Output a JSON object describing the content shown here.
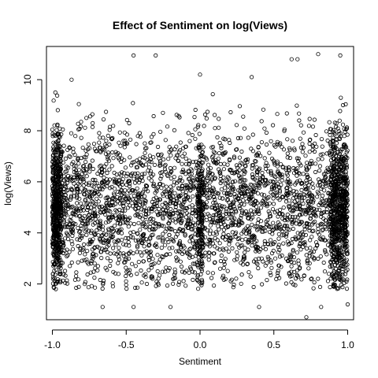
{
  "chart_data": {
    "type": "scatter",
    "title": "Effect of Sentiment on log(Views)",
    "xlabel": "Sentiment",
    "ylabel": "log(Views)",
    "xlim": [
      -1.04,
      1.04
    ],
    "ylim": [
      0.6,
      11.3
    ],
    "x_ticks": [
      -1.0,
      -0.5,
      0.0,
      0.5,
      1.0
    ],
    "x_tick_labels": [
      "-1.0",
      "-0.5",
      "0.0",
      "0.5",
      "1.0"
    ],
    "y_ticks": [
      2,
      4,
      6,
      8,
      10
    ],
    "y_tick_labels": [
      "2",
      "4",
      "6",
      "8",
      "10"
    ],
    "marker": "open-circle",
    "point_color": "#000000",
    "grid": false,
    "legend": "none",
    "sample_points": [
      {
        "x": -0.45,
        "y": 10.95
      },
      {
        "x": -0.3,
        "y": 10.95
      },
      {
        "x": 0.8,
        "y": 11.0
      },
      {
        "x": 0.95,
        "y": 10.95
      },
      {
        "x": 0.62,
        "y": 10.8
      },
      {
        "x": 0.66,
        "y": 10.8
      },
      {
        "x": 0.72,
        "y": 0.7
      },
      {
        "x": -0.66,
        "y": 1.1
      },
      {
        "x": -0.45,
        "y": 1.1
      },
      {
        "x": 0.82,
        "y": 1.1
      },
      {
        "x": -0.98,
        "y": 9.5
      },
      {
        "x": -0.87,
        "y": 10.0
      },
      {
        "x": 0.0,
        "y": 10.2
      },
      {
        "x": 0.35,
        "y": 10.1
      },
      {
        "x": -0.2,
        "y": 1.1
      },
      {
        "x": 0.4,
        "y": 1.1
      },
      {
        "x": 1.0,
        "y": 1.2
      }
    ]
  }
}
